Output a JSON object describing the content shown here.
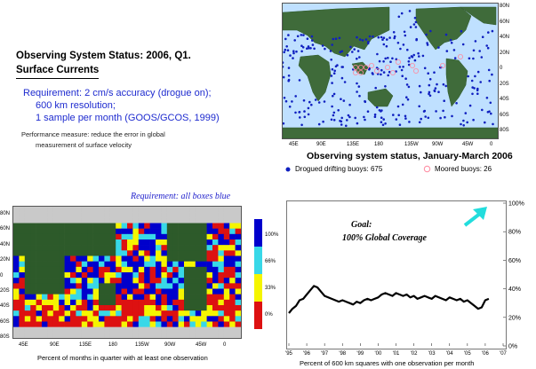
{
  "left_text": {
    "title_line1": "Observing System Status:  2006, Q1.",
    "title_line2": "Surface Currents",
    "requirement_lines": [
      "Requirement: 2 cm/s accuracy (drogue on);",
      "600 km resolution;",
      "1 sample per month (GOOS/GCOS, 1999)"
    ],
    "performance_lines": [
      "Performance measure: reduce the error in global",
      "measurement of surface velocity"
    ]
  },
  "top_map": {
    "lat_labels": [
      "80N",
      "60N",
      "40N",
      "20N",
      "0",
      "20S",
      "40S",
      "60S",
      "80S"
    ],
    "lon_labels": [
      "45E",
      "90E",
      "135E",
      "180",
      "135W",
      "90W",
      "45W",
      "0"
    ],
    "caption": "Observing system status, January-March 2006",
    "legend": [
      {
        "marker": "filled-dot",
        "color": "#1020c0",
        "label": "Drogued drifting buoys: 675"
      },
      {
        "marker": "open-circle",
        "color": "#ff8aa0",
        "label": "Moored buoys: 26"
      }
    ]
  },
  "bottom_map": {
    "title": "Requirement: all boxes blue",
    "lat_labels": [
      "80N",
      "60N",
      "40N",
      "20N",
      "0",
      "20S",
      "40S",
      "60S",
      "80S"
    ],
    "lon_labels": [
      "45E",
      "90E",
      "135E",
      "180",
      "135W",
      "90W",
      "45W",
      "0"
    ],
    "colorbar": [
      {
        "label": "100%",
        "color": "#0000cc"
      },
      {
        "label": "66%",
        "color": "#38d8e8"
      },
      {
        "label": "33%",
        "color": "#f5f500"
      },
      {
        "label": "0%",
        "color": "#dd1111"
      }
    ],
    "xlabel": "Percent of months in quarter with at least one observation"
  },
  "chart_data": {
    "type": "line",
    "x_tick_labels": [
      "'95",
      "'96",
      "'97",
      "'98",
      "'99",
      "'00",
      "'01",
      "'02",
      "'03",
      "'04",
      "'05",
      "'06",
      "'07"
    ],
    "y_tick_labels": [
      "0%",
      "20%",
      "40%",
      "60%",
      "80%",
      "100%"
    ],
    "xlim": [
      1995,
      2007
    ],
    "ylim": [
      0,
      100
    ],
    "xlabel": "Percent of 600 km squares with one observation per month",
    "annotation_line1": "Goal:",
    "annotation_line2": "100% Global Coverage",
    "arrow_color": "#22dddd",
    "series": [
      {
        "color": "#000000",
        "x": [
          1995.0,
          1995.2,
          1995.4,
          1995.6,
          1995.8,
          1996.0,
          1996.2,
          1996.4,
          1996.6,
          1996.8,
          1997.0,
          1997.2,
          1997.4,
          1997.6,
          1997.8,
          1998.0,
          1998.2,
          1998.4,
          1998.6,
          1998.8,
          1999.0,
          1999.2,
          1999.4,
          1999.6,
          1999.8,
          2000.0,
          2000.2,
          2000.4,
          2000.6,
          2000.8,
          2001.0,
          2001.2,
          2001.4,
          2001.6,
          2001.8,
          2002.0,
          2002.2,
          2002.4,
          2002.6,
          2002.8,
          2003.0,
          2003.2,
          2003.4,
          2003.6,
          2003.8,
          2004.0,
          2004.2,
          2004.4,
          2004.6,
          2004.8,
          2005.0,
          2005.2,
          2005.4,
          2005.6,
          2005.8,
          2006.0,
          2006.2
        ],
        "y": [
          23,
          26,
          28,
          32,
          33,
          36,
          39,
          42,
          41,
          38,
          35,
          34,
          33,
          32,
          31,
          32,
          31,
          30,
          29,
          31,
          30,
          32,
          33,
          32,
          33,
          34,
          36,
          37,
          36,
          35,
          37,
          36,
          35,
          36,
          34,
          35,
          33,
          34,
          35,
          34,
          33,
          35,
          34,
          33,
          32,
          34,
          33,
          32,
          33,
          31,
          32,
          30,
          28,
          26,
          27,
          32,
          33
        ]
      }
    ]
  }
}
